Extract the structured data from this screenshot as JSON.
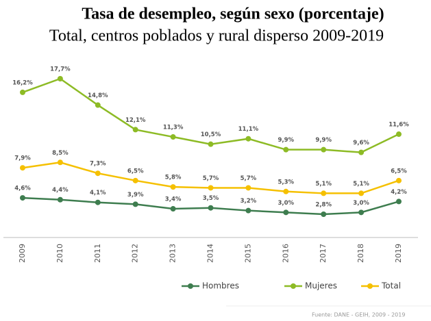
{
  "chart_data": {
    "type": "line",
    "title": "Tasa de desempleo, según sexo (porcentaje)",
    "subtitle": "Total, centros poblados y rural disperso 2009-2019",
    "categories": [
      "2009",
      "2010",
      "2011",
      "2012",
      "2013",
      "2014",
      "2015",
      "2016",
      "2017",
      "2018",
      "2019"
    ],
    "series": [
      {
        "name": "Hombres",
        "color": "#3e7d4f",
        "values": [
          4.6,
          4.4,
          4.1,
          3.9,
          3.4,
          3.5,
          3.2,
          3.0,
          2.8,
          3.0,
          4.2
        ],
        "value_labels": [
          "4,6%",
          "4,4%",
          "4,1%",
          "3,9%",
          "3,4%",
          "3,5%",
          "3,2%",
          "3,0%",
          "2,8%",
          "3,0%",
          "4,2%"
        ]
      },
      {
        "name": "Mujeres",
        "color": "#8dbb25",
        "values": [
          16.2,
          17.7,
          14.8,
          12.1,
          11.3,
          10.5,
          11.1,
          9.9,
          9.9,
          9.6,
          11.6
        ],
        "value_labels": [
          "16,2%",
          "17,7%",
          "14,8%",
          "12,1%",
          "11,3%",
          "10,5%",
          "11,1%",
          "9,9%",
          "9,9%",
          "9,6%",
          "11,6%"
        ]
      },
      {
        "name": "Total",
        "color": "#f5c000",
        "values": [
          7.9,
          8.5,
          7.3,
          6.5,
          5.8,
          5.7,
          5.7,
          5.3,
          5.1,
          5.1,
          6.5
        ],
        "value_labels": [
          "7,9%",
          "8,5%",
          "7,3%",
          "6,5%",
          "5,8%",
          "5,7%",
          "5,7%",
          "5,3%",
          "5,1%",
          "5,1%",
          "6,5%"
        ]
      }
    ],
    "legend": "bottom",
    "source": "Fuente: DANE - GEIH, 2009 - 2019"
  }
}
